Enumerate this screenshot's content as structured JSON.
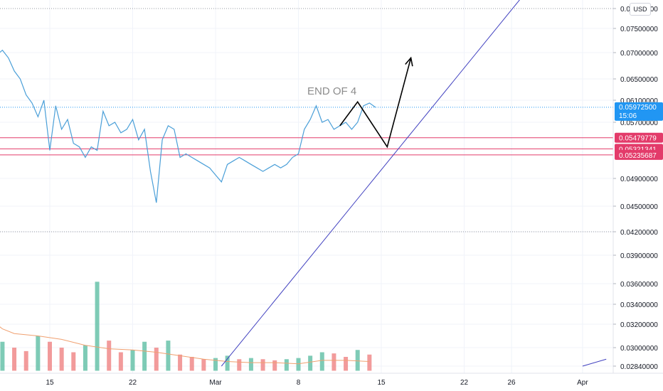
{
  "chart_data": {
    "type": "line",
    "currency": "USD",
    "ylim": [
      0.0275,
      0.0805
    ],
    "price_ticks": [
      "0.07800000",
      "0.07500000",
      "0.07000000",
      "0.06500000",
      "0.06100000",
      "0.05700000",
      "0.04900000",
      "0.04500000",
      "0.04200000",
      "0.03900000",
      "0.03600000",
      "0.03400000",
      "0.03200000",
      "0.03000000",
      "0.02840000"
    ],
    "date_ticks": [
      "15",
      "22",
      "Mar",
      "8",
      "15",
      "22",
      "26",
      "Apr"
    ],
    "price_series": [
      [
        "2021-02-08",
        0.0755
      ],
      [
        "2021-02-08T12",
        0.0745
      ],
      [
        "2021-02-09",
        0.0735
      ],
      [
        "2021-02-09T12",
        0.072
      ],
      [
        "2021-02-10",
        0.0685
      ],
      [
        "2021-02-10T12",
        0.0695
      ],
      [
        "2021-02-11",
        0.0705
      ],
      [
        "2021-02-11T12",
        0.069
      ],
      [
        "2021-02-12",
        0.0665
      ],
      [
        "2021-02-12T12",
        0.065
      ],
      [
        "2021-02-13",
        0.062
      ],
      [
        "2021-02-13T12",
        0.0605
      ],
      [
        "2021-02-14",
        0.058
      ],
      [
        "2021-02-14T12",
        0.061
      ],
      [
        "2021-02-15",
        0.053
      ],
      [
        "2021-02-15T12",
        0.06
      ],
      [
        "2021-02-16",
        0.056
      ],
      [
        "2021-02-16T12",
        0.0575
      ],
      [
        "2021-02-17",
        0.054
      ],
      [
        "2021-02-17T12",
        0.0535
      ],
      [
        "2021-02-18",
        0.052
      ],
      [
        "2021-02-18T12",
        0.0535
      ],
      [
        "2021-02-19",
        0.053
      ],
      [
        "2021-02-19T12",
        0.059
      ],
      [
        "2021-02-20",
        0.0565
      ],
      [
        "2021-02-20T12",
        0.057
      ],
      [
        "2021-02-21",
        0.0555
      ],
      [
        "2021-02-21T12",
        0.056
      ],
      [
        "2021-02-22",
        0.0575
      ],
      [
        "2021-02-22T12",
        0.0545
      ],
      [
        "2021-02-23",
        0.056
      ],
      [
        "2021-02-23T12",
        0.05
      ],
      [
        "2021-02-24",
        0.0455
      ],
      [
        "2021-02-24T12",
        0.0545
      ],
      [
        "2021-02-25",
        0.0565
      ],
      [
        "2021-02-25T12",
        0.056
      ],
      [
        "2021-02-26",
        0.052
      ],
      [
        "2021-02-26T12",
        0.0525
      ],
      [
        "2021-02-27",
        0.052
      ],
      [
        "2021-02-27T12",
        0.0515
      ],
      [
        "2021-02-28",
        0.051
      ],
      [
        "2021-02-28T12",
        0.0505
      ],
      [
        "2021-03-01",
        0.0495
      ],
      [
        "2021-03-01T12",
        0.0485
      ],
      [
        "2021-03-02",
        0.051
      ],
      [
        "2021-03-02T12",
        0.0515
      ],
      [
        "2021-03-03",
        0.052
      ],
      [
        "2021-03-03T12",
        0.0515
      ],
      [
        "2021-03-04",
        0.051
      ],
      [
        "2021-03-04T12",
        0.0505
      ],
      [
        "2021-03-05",
        0.05
      ],
      [
        "2021-03-05T12",
        0.0505
      ],
      [
        "2021-03-06",
        0.051
      ],
      [
        "2021-03-06T12",
        0.0505
      ],
      [
        "2021-03-07",
        0.051
      ],
      [
        "2021-03-07T12",
        0.052
      ],
      [
        "2021-03-08",
        0.0525
      ],
      [
        "2021-03-08T12",
        0.056
      ],
      [
        "2021-03-09",
        0.0575
      ],
      [
        "2021-03-09T12",
        0.06
      ],
      [
        "2021-03-10",
        0.057
      ],
      [
        "2021-03-10T12",
        0.0575
      ],
      [
        "2021-03-11",
        0.056
      ],
      [
        "2021-03-11T12",
        0.0565
      ],
      [
        "2021-03-12",
        0.057
      ],
      [
        "2021-03-12T12",
        0.056
      ],
      [
        "2021-03-13",
        0.057
      ],
      [
        "2021-03-13T12",
        0.06
      ],
      [
        "2021-03-14",
        0.0605
      ],
      [
        "2021-03-14T12",
        0.059725
      ]
    ],
    "volume_series": [
      [
        "2021-02-08",
        0.0299
      ],
      [
        "2021-02-09",
        0.0302
      ],
      [
        "2021-02-10",
        0.0296
      ],
      [
        "2021-02-11",
        0.0305
      ],
      [
        "2021-02-12",
        0.03
      ],
      [
        "2021-02-13",
        0.0297
      ],
      [
        "2021-02-14",
        0.031
      ],
      [
        "2021-02-15",
        0.0305
      ],
      [
        "2021-02-16",
        0.03
      ],
      [
        "2021-02-17",
        0.0296
      ],
      [
        "2021-02-18",
        0.0302
      ],
      [
        "2021-02-19",
        0.0362
      ],
      [
        "2021-02-20",
        0.0306
      ],
      [
        "2021-02-21",
        0.0296
      ],
      [
        "2021-02-22",
        0.0298
      ],
      [
        "2021-02-23",
        0.0305
      ],
      [
        "2021-02-24",
        0.03
      ],
      [
        "2021-02-25",
        0.0306
      ],
      [
        "2021-02-26",
        0.0294
      ],
      [
        "2021-02-27",
        0.0292
      ],
      [
        "2021-02-28",
        0.029
      ],
      [
        "2021-03-01",
        0.0291
      ],
      [
        "2021-03-02",
        0.0293
      ],
      [
        "2021-03-03",
        0.029
      ],
      [
        "2021-03-04",
        0.0291
      ],
      [
        "2021-03-05",
        0.029
      ],
      [
        "2021-03-06",
        0.0289
      ],
      [
        "2021-03-07",
        0.029
      ],
      [
        "2021-03-08",
        0.0291
      ],
      [
        "2021-03-09",
        0.0293
      ],
      [
        "2021-03-10",
        0.0296
      ],
      [
        "2021-03-11",
        0.0295
      ],
      [
        "2021-03-12",
        0.0292
      ],
      [
        "2021-03-13",
        0.0298
      ],
      [
        "2021-03-14",
        0.0294
      ]
    ],
    "volume_ma": [
      [
        "2021-02-08",
        0.0358
      ],
      [
        "2021-02-09",
        0.034
      ],
      [
        "2021-02-10",
        0.0325
      ],
      [
        "2021-02-11",
        0.0316
      ],
      [
        "2021-02-12",
        0.0312
      ],
      [
        "2021-02-14",
        0.031
      ],
      [
        "2021-02-16",
        0.0307
      ],
      [
        "2021-02-18",
        0.0302
      ],
      [
        "2021-02-20",
        0.0299
      ],
      [
        "2021-02-22",
        0.0298
      ],
      [
        "2021-02-24",
        0.0296
      ],
      [
        "2021-02-26",
        0.0293
      ],
      [
        "2021-02-28",
        0.029
      ],
      [
        "2021-03-02",
        0.0288
      ],
      [
        "2021-03-04",
        0.0287
      ],
      [
        "2021-03-06",
        0.0287
      ],
      [
        "2021-03-08",
        0.0286
      ],
      [
        "2021-03-10",
        0.0289
      ],
      [
        "2021-03-12",
        0.0289
      ],
      [
        "2021-03-14",
        0.0288
      ]
    ],
    "trendlines": [
      {
        "from": [
          "2021-03-01T12",
          0.0284
        ],
        "to": [
          "2021-03-27",
          0.08
        ]
      },
      {
        "from": [
          "2021-04-01",
          0.0284
        ],
        "to": [
          "2021-04-03",
          0.029
        ]
      }
    ],
    "projection_path": [
      [
        "2021-03-11T12",
        0.0565
      ],
      [
        "2021-03-13",
        0.0607
      ],
      [
        "2021-03-15T12",
        0.0535
      ],
      [
        "2021-03-17T12",
        0.069
      ]
    ],
    "price_level_lines": [
      0.05479779,
      0.05321341,
      0.05235687
    ],
    "dotted_level_lines": [
      0.078,
      0.042
    ],
    "current_price": {
      "value": "0.05972500",
      "countdown": "15:06"
    },
    "level_tags": [
      "0.05479779",
      "0.05321341",
      "0.05235687"
    ],
    "annotation": "END OF 4",
    "colors": {
      "price": "#4a9fd8",
      "volume_up": "#67c2a9",
      "volume_down": "#f08a8a",
      "volume_ma": "#f0a070",
      "trendline": "#3f3fbf",
      "level_line": "#e33b6a",
      "current_tag": "#2196f3",
      "projection": "#000000"
    }
  }
}
